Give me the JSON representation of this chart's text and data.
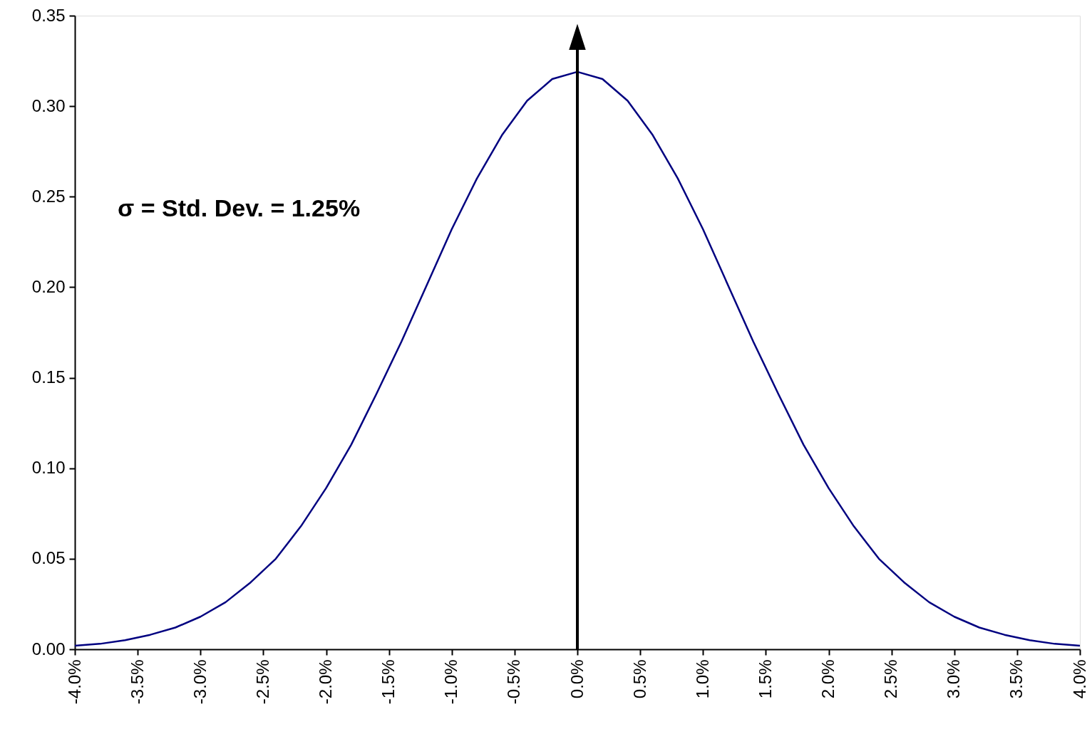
{
  "chart_data": {
    "type": "line",
    "x": [
      -4.0,
      -3.8,
      -3.6,
      -3.4,
      -3.2,
      -3.0,
      -2.8,
      -2.6,
      -2.4,
      -2.2,
      -2.0,
      -1.8,
      -1.6,
      -1.4,
      -1.2,
      -1.0,
      -0.8,
      -0.6,
      -0.4,
      -0.2,
      0.0,
      0.2,
      0.4,
      0.6,
      0.8,
      1.0,
      1.2,
      1.4,
      1.6,
      1.8,
      2.0,
      2.2,
      2.4,
      2.6,
      2.8,
      3.0,
      3.2,
      3.4,
      3.6,
      3.8,
      4.0
    ],
    "series": [
      {
        "color": "#000080",
        "values": [
          0.002,
          0.003,
          0.005,
          0.008,
          0.012,
          0.018,
          0.026,
          0.037,
          0.05,
          0.068,
          0.089,
          0.113,
          0.141,
          0.17,
          0.201,
          0.232,
          0.26,
          0.284,
          0.303,
          0.315,
          0.319,
          0.315,
          0.303,
          0.284,
          0.26,
          0.232,
          0.201,
          0.17,
          0.141,
          0.113,
          0.089,
          0.068,
          0.05,
          0.037,
          0.026,
          0.018,
          0.012,
          0.008,
          0.005,
          0.003,
          0.002
        ]
      }
    ],
    "xlim": [
      -4.0,
      4.0
    ],
    "xticks": [
      {
        "value": -4.0,
        "label": "-4.0%"
      },
      {
        "value": -3.5,
        "label": "-3.5%"
      },
      {
        "value": -3.0,
        "label": "-3.0%"
      },
      {
        "value": -2.5,
        "label": "-2.5%"
      },
      {
        "value": -2.0,
        "label": "-2.0%"
      },
      {
        "value": -1.5,
        "label": "-1.5%"
      },
      {
        "value": -1.0,
        "label": "-1.0%"
      },
      {
        "value": -0.5,
        "label": "-0.5%"
      },
      {
        "value": 0.0,
        "label": "0.0%"
      },
      {
        "value": 0.5,
        "label": "0.5%"
      },
      {
        "value": 1.0,
        "label": "1.0%"
      },
      {
        "value": 1.5,
        "label": "1.5%"
      },
      {
        "value": 2.0,
        "label": "2.0%"
      },
      {
        "value": 2.5,
        "label": "2.5%"
      },
      {
        "value": 3.0,
        "label": "3.0%"
      },
      {
        "value": 3.5,
        "label": "3.5%"
      },
      {
        "value": 4.0,
        "label": "4.0%"
      }
    ],
    "ylim": [
      0,
      0.35
    ],
    "yticks": [
      {
        "value": 0,
        "label": "0.00"
      },
      {
        "value": 0.05,
        "label": "0.05"
      },
      {
        "value": 0.1,
        "label": "0.10"
      },
      {
        "value": 0.15,
        "label": "0.15"
      },
      {
        "value": 0.2,
        "label": "0.20"
      },
      {
        "value": 0.25,
        "label": "0.25"
      },
      {
        "value": 0.3,
        "label": "0.30"
      },
      {
        "value": 0.35,
        "label": "0.35"
      }
    ],
    "ref_lines": [
      {
        "axis": "x",
        "value": 0.0,
        "color": "#000000"
      }
    ],
    "annotations": [
      "σ = Std. Dev. = 1.25%"
    ],
    "grid": false,
    "marker": "none",
    "line_style": "solid"
  }
}
